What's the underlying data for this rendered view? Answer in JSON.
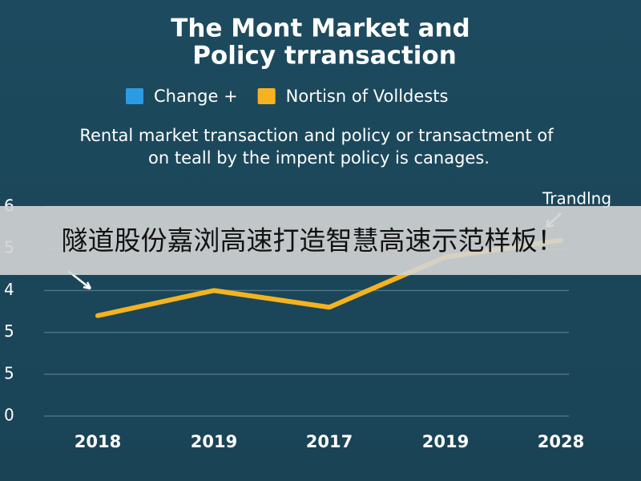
{
  "chart_data": {
    "type": "line",
    "title": [
      "The Mont Market and",
      "Policy trransaction"
    ],
    "subtitle": [
      "Rental market transaction and policy or transactment of",
      "on teall by the impent policy is canages."
    ],
    "legend": [
      {
        "name": "Change +",
        "color": "#2c9be3"
      },
      {
        "name": "Nortisn of Volldests",
        "color": "#f5b320"
      }
    ],
    "categories": [
      "2018",
      "2019",
      "2017",
      "2019",
      "2028"
    ],
    "series": [
      {
        "name": "Nortisn of Volldests",
        "color": "#f5b320",
        "values": [
          2.4,
          3.0,
          2.6,
          3.8,
          4.2
        ]
      }
    ],
    "ylim": [
      0,
      5
    ],
    "yticks": [
      0,
      {
        "value": 1,
        "label": "5"
      },
      {
        "value": 2,
        "label": "5"
      },
      {
        "value": 3,
        "label": "4"
      },
      {
        "value": 4,
        "label": "5"
      },
      {
        "value": 5,
        "label": "6"
      }
    ],
    "grid": true,
    "annotation": "Trandlng"
  },
  "banner": "隧道股份嘉浏高速打造智慧高速示范样板！"
}
